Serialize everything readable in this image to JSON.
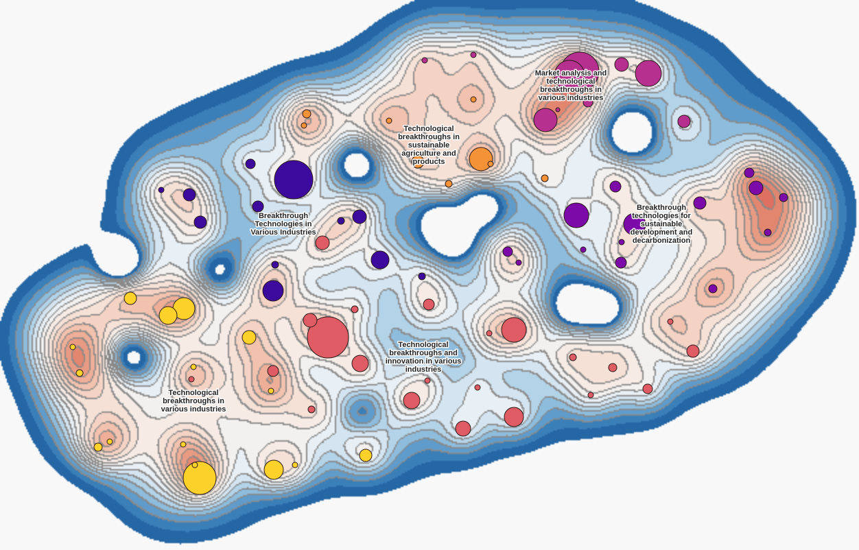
{
  "clusters": [
    {
      "label_lines": [
        "Market analysis and",
        "technological",
        "breakthroughs in",
        "various industries"
      ],
      "color": "#b5308f"
    },
    {
      "label_lines": [
        "Technological",
        "breakthroughs in",
        "sustainable",
        "agriculture and",
        "products"
      ],
      "color": "#f39237"
    },
    {
      "label_lines": [
        "Breakthrough",
        "technologies for",
        "sustainable",
        "development and",
        "decarbonization"
      ],
      "color": "#7b0aa8"
    },
    {
      "label_lines": [
        "Breakthrough",
        "Technologies in",
        "Various Industries"
      ],
      "color": "#3d0a9e"
    },
    {
      "label_lines": [
        "Technological",
        "breakthroughs and",
        "innovation in various",
        "industries"
      ],
      "color": "#e05c65"
    },
    {
      "label_lines": [
        "Technological",
        "breakthroughs in",
        "various industries"
      ],
      "color": "#fcd12a"
    }
  ],
  "density_palette": {
    "low": "#2566a5",
    "mid": "#f3f1ef",
    "high": "#d9534a",
    "contour_line": "#8a8a8a"
  }
}
